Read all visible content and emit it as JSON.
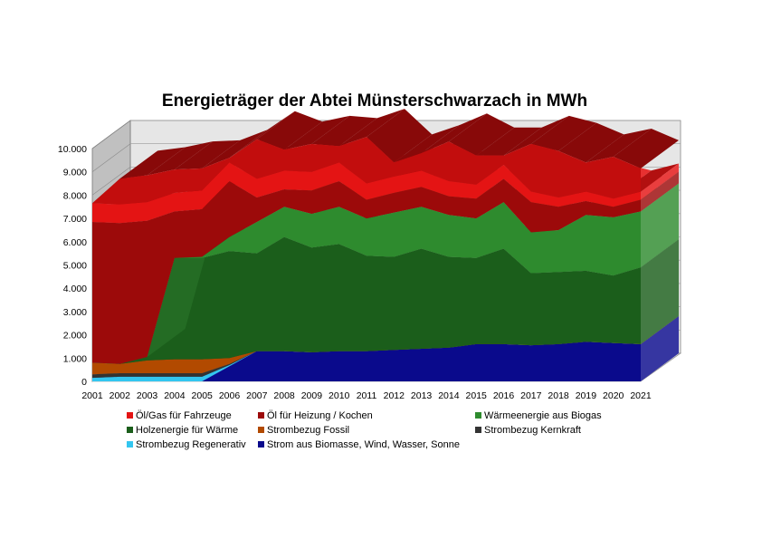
{
  "chart_data": {
    "type": "area",
    "stacked": true,
    "three_d": true,
    "title": "Energieträger der Abtei Münsterschwarzach in MWh",
    "xlabel": "",
    "ylabel": "",
    "ylim": [
      0,
      10000
    ],
    "ytick_values": [
      0,
      1000,
      2000,
      3000,
      4000,
      5000,
      6000,
      7000,
      8000,
      9000,
      10000
    ],
    "ytick_labels": [
      "0",
      "1.000",
      "2.000",
      "3.000",
      "4.000",
      "5.000",
      "6.000",
      "7.000",
      "8.000",
      "9.000",
      "10.000"
    ],
    "x": [
      "2001",
      "2002",
      "2003",
      "2004",
      "2005",
      "2006",
      "2007",
      "2008",
      "2009",
      "2010",
      "2011",
      "2012",
      "2013",
      "2014",
      "2015",
      "2016",
      "2017",
      "2018",
      "2019",
      "2020",
      "2021"
    ],
    "grid": true,
    "legend_position": "bottom",
    "series": [
      {
        "name": "Strom aus Biomasse, Wind, Wasser, Sonne",
        "color": "#0a0a8c",
        "values": [
          0,
          0,
          0,
          0,
          0,
          650,
          1300,
          1300,
          1250,
          1300,
          1300,
          1350,
          1400,
          1450,
          1600,
          1600,
          1550,
          1600,
          1700,
          1650,
          1600
        ]
      },
      {
        "name": "Strombezug Regenerativ",
        "color": "#33c6f0",
        "values": [
          150,
          200,
          200,
          200,
          200,
          50,
          0,
          0,
          0,
          0,
          0,
          0,
          0,
          0,
          0,
          0,
          0,
          0,
          0,
          0,
          0
        ]
      },
      {
        "name": "Strombezug Kernkraft",
        "color": "#333333",
        "values": [
          150,
          150,
          150,
          150,
          150,
          50,
          0,
          0,
          0,
          0,
          0,
          0,
          0,
          0,
          0,
          0,
          0,
          0,
          0,
          0,
          0
        ]
      },
      {
        "name": "Strombezug Fossil",
        "color": "#b24a00",
        "values": [
          500,
          400,
          550,
          600,
          600,
          250,
          0,
          0,
          0,
          0,
          0,
          0,
          0,
          0,
          0,
          0,
          0,
          0,
          0,
          0,
          0
        ]
      },
      {
        "name": "Holzenergie für Wärme",
        "color": "#1b5e1b",
        "values": [
          0,
          0,
          150,
          4350,
          4350,
          4600,
          4200,
          4900,
          4500,
          4600,
          4100,
          4000,
          4300,
          3900,
          3700,
          4100,
          3100,
          3100,
          3050,
          2900,
          3300
        ]
      },
      {
        "name": "Wärmeenergie aus Biogas",
        "color": "#2e8b2e",
        "values": [
          0,
          0,
          0,
          0,
          50,
          600,
          1350,
          1300,
          1450,
          1600,
          1600,
          1900,
          1800,
          1800,
          1700,
          2000,
          1750,
          1800,
          2400,
          2500,
          2400
        ]
      },
      {
        "name": "Öl für Heizung / Kochen",
        "color": "#9c0a0a",
        "values": [
          6050,
          6050,
          5850,
          2000,
          2050,
          2400,
          1050,
          750,
          1000,
          1100,
          800,
          850,
          850,
          800,
          850,
          1000,
          1300,
          1000,
          600,
          450,
          500
        ]
      },
      {
        "name": "Öl/Gas  für Fahrzeuge",
        "color": "#e41414",
        "values": [
          800,
          800,
          800,
          800,
          800,
          800,
          800,
          800,
          800,
          800,
          700,
          700,
          700,
          650,
          600,
          600,
          450,
          400,
          400,
          350,
          350
        ]
      }
    ],
    "top_overlay": {
      "color": "#c20d0d",
      "values": [
        0,
        1100,
        1150,
        1000,
        950,
        200,
        1700,
        900,
        1200,
        700,
        2000,
        600,
        750,
        1700,
        1250,
        400,
        2050,
        2000,
        1250,
        1800,
        1000
      ]
    },
    "legend_order": [
      "Öl/Gas  für Fahrzeuge",
      "Öl für Heizung / Kochen",
      "Wärmeenergie aus Biogas",
      "Holzenergie für Wärme",
      "Strombezug Fossil",
      "Strombezug Kernkraft",
      "Strombezug Regenerativ",
      "Strom aus Biomasse, Wind, Wasser, Sonne"
    ]
  }
}
